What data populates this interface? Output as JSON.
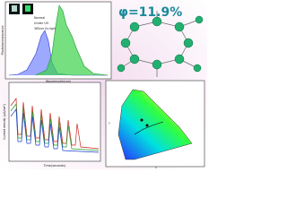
{
  "panels": {
    "spectrum": {
      "inset_normal": "Normal",
      "inset_uv": "Under UV",
      "excitation": "365nm Ex.light",
      "y_label": "Photoluminescence",
      "x_label": "Wavelength(nm)"
    },
    "quantum_yield": "φ=11.9%",
    "photocurrent": {
      "y_label": "Current density (μA/cm²)",
      "x_label": "Time(seconds)"
    },
    "cie": {
      "x_label": "x",
      "y_label": "y"
    }
  }
}
